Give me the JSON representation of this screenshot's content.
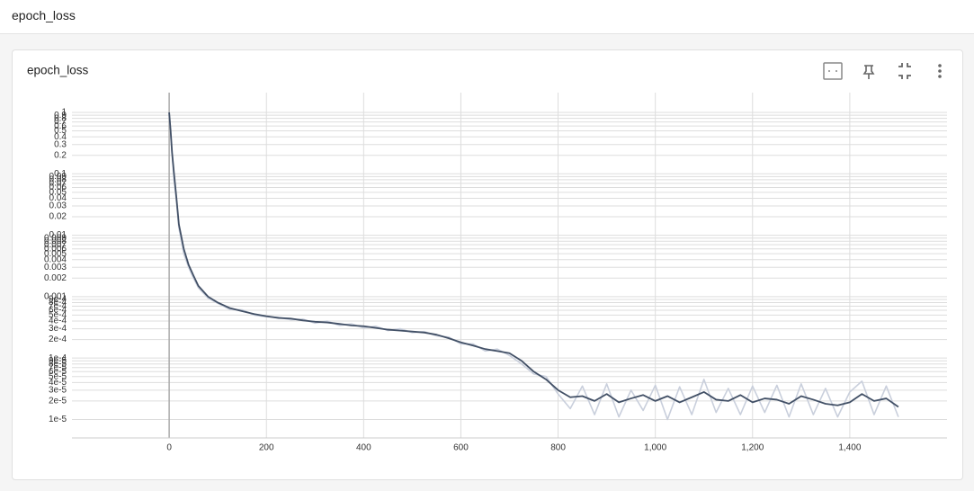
{
  "header": {
    "title": "epoch_loss"
  },
  "chart_data": {
    "type": "line",
    "title": "epoch_loss",
    "x": [
      0,
      3,
      6,
      10,
      15,
      20,
      30,
      40,
      50,
      60,
      80,
      100,
      125,
      150,
      175,
      200,
      225,
      250,
      275,
      300,
      325,
      350,
      375,
      400,
      425,
      450,
      475,
      500,
      525,
      550,
      575,
      600,
      625,
      650,
      675,
      700,
      725,
      750,
      775,
      800,
      825,
      850,
      875,
      900,
      925,
      950,
      975,
      1000,
      1025,
      1050,
      1075,
      1100,
      1125,
      1150,
      1175,
      1200,
      1225,
      1250,
      1275,
      1300,
      1325,
      1350,
      1375,
      1400,
      1425,
      1450,
      1475,
      1500
    ],
    "series": [
      {
        "color": "#c9cfdc",
        "values": [
          1.0,
          0.45,
          0.2,
          0.08,
          0.035,
          0.013,
          0.005,
          0.003,
          0.002,
          0.0014,
          0.00095,
          0.00078,
          0.00062,
          0.00061,
          0.0005,
          0.00047,
          0.00046,
          0.00042,
          0.00043,
          0.00037,
          0.0004,
          0.00034,
          0.00036,
          0.00031,
          0.00033,
          0.00028,
          0.0003,
          0.00026,
          0.00027,
          0.00023,
          0.00022,
          0.00017,
          0.00017,
          0.00013,
          0.00014,
          0.00011,
          8e-05,
          5.5e-05,
          5e-05,
          2.6e-05,
          1.5e-05,
          3.5e-05,
          1.2e-05,
          3.8e-05,
          1.1e-05,
          3e-05,
          1.4e-05,
          3.6e-05,
          1e-05,
          3.4e-05,
          1.2e-05,
          4.5e-05,
          1.3e-05,
          3.2e-05,
          1.2e-05,
          3.5e-05,
          1.3e-05,
          3.6e-05,
          1.1e-05,
          3.8e-05,
          1.2e-05,
          3.2e-05,
          1.1e-05,
          2.8e-05,
          4.2e-05,
          1.2e-05,
          3.5e-05,
          1.1e-05
        ]
      },
      {
        "color": "#425066",
        "values": [
          1.0,
          0.5,
          0.22,
          0.1,
          0.04,
          0.015,
          0.006,
          0.0033,
          0.0022,
          0.0015,
          0.001,
          0.0008,
          0.00065,
          0.00058,
          0.00052,
          0.00048,
          0.00045,
          0.00044,
          0.00041,
          0.00039,
          0.00038,
          0.00036,
          0.00034,
          0.00033,
          0.00031,
          0.00029,
          0.00028,
          0.00027,
          0.00026,
          0.00024,
          0.00021,
          0.00018,
          0.00016,
          0.00014,
          0.00013,
          0.00012,
          9e-05,
          6e-05,
          4.5e-05,
          3e-05,
          2.3e-05,
          2.4e-05,
          2e-05,
          2.6e-05,
          1.9e-05,
          2.2e-05,
          2.5e-05,
          2e-05,
          2.4e-05,
          1.9e-05,
          2.3e-05,
          2.8e-05,
          2.1e-05,
          2e-05,
          2.5e-05,
          1.9e-05,
          2.2e-05,
          2.1e-05,
          1.8e-05,
          2.4e-05,
          2.1e-05,
          1.8e-05,
          1.7e-05,
          1.9e-05,
          2.6e-05,
          2e-05,
          2.2e-05,
          1.6e-05
        ]
      }
    ],
    "xlim": [
      -200,
      1600
    ],
    "xticks": [
      0,
      200,
      400,
      600,
      800,
      {
        "value": 1000,
        "label": "1,000"
      },
      {
        "value": 1200,
        "label": "1,200"
      },
      {
        "value": 1400,
        "label": "1,400"
      }
    ],
    "ylim": [
      5e-06,
      2.1
    ],
    "yscale": "log",
    "yticks": [
      1,
      0.9,
      0.8,
      0.7,
      0.6,
      0.5,
      0.4,
      0.3,
      0.2,
      0.1,
      0.09,
      0.08,
      0.07,
      0.06,
      0.05,
      0.04,
      0.03,
      0.02,
      0.01,
      0.009,
      0.008,
      0.007,
      0.006,
      0.005,
      0.004,
      0.003,
      0.002,
      0.001,
      {
        "value": 0.0009,
        "label": "9e-4"
      },
      {
        "value": 0.0008,
        "label": "8e-4"
      },
      {
        "value": 0.0007,
        "label": "7e-4"
      },
      {
        "value": 0.0006,
        "label": "6e-4"
      },
      {
        "value": 0.0005,
        "label": "5e-4"
      },
      {
        "value": 0.0004,
        "label": "4e-4"
      },
      {
        "value": 0.0003,
        "label": "3e-4"
      },
      {
        "value": 0.0002,
        "label": "2e-4"
      },
      {
        "value": 0.0001,
        "label": "1e-4"
      },
      {
        "value": 9e-05,
        "label": "9e-5"
      },
      {
        "value": 8e-05,
        "label": "8e-5"
      },
      {
        "value": 7e-05,
        "label": "7e-5"
      },
      {
        "value": 6e-05,
        "label": "6e-5"
      },
      {
        "value": 5e-05,
        "label": "5e-5"
      },
      {
        "value": 4e-05,
        "label": "4e-5"
      },
      {
        "value": 3e-05,
        "label": "3e-5"
      },
      {
        "value": 2e-05,
        "label": "2e-5"
      },
      {
        "value": 1e-05,
        "label": "1e-5"
      }
    ],
    "grid": true
  }
}
